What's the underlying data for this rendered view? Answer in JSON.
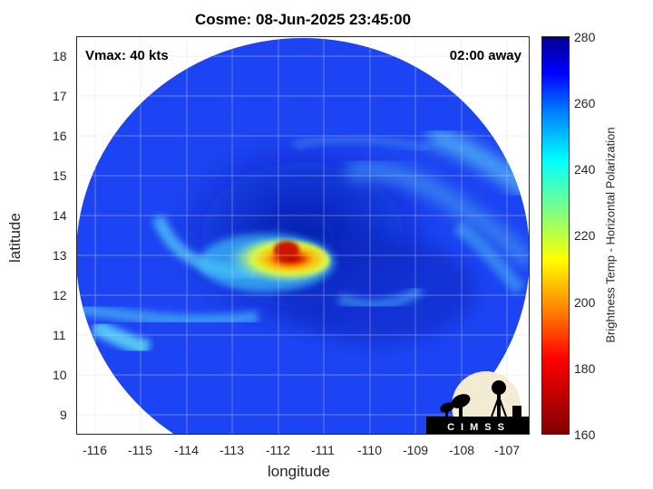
{
  "title": "Cosme: 08-Jun-2025 23:45:00",
  "vmax_text": "Vmax: 40 kts",
  "time_away_text": "02:00 away",
  "logo_text": "CIMSS",
  "xaxis": {
    "label": "longitude",
    "ticks": [
      "-116",
      "-115",
      "-114",
      "-113",
      "-112",
      "-111",
      "-110",
      "-109",
      "-108",
      "-107"
    ],
    "range": [
      -116.5,
      -106.6
    ]
  },
  "yaxis": {
    "label": "latitude",
    "ticks": [
      "9",
      "10",
      "11",
      "12",
      "13",
      "14",
      "15",
      "16",
      "17",
      "18"
    ],
    "range": [
      8.5,
      18.5
    ]
  },
  "colorbar": {
    "label": "Brightness Temp - Horizontal Polarization",
    "ticks": [
      "160",
      "180",
      "200",
      "220",
      "240",
      "260",
      "280"
    ],
    "range": [
      160,
      280
    ],
    "colormap": "jet"
  },
  "map_features": {
    "storm_center_lon": -111.7,
    "storm_center_lat": 13.0,
    "swath_shape": "circle",
    "grid": true
  },
  "colors": {
    "background_field": "#1a3ff0",
    "dark_band": "#0a20b8",
    "rainband": "#4aa8f0",
    "core_warm": "#c81e00",
    "core_mid": "#ffb000",
    "core_cool": "#d8ff40"
  }
}
